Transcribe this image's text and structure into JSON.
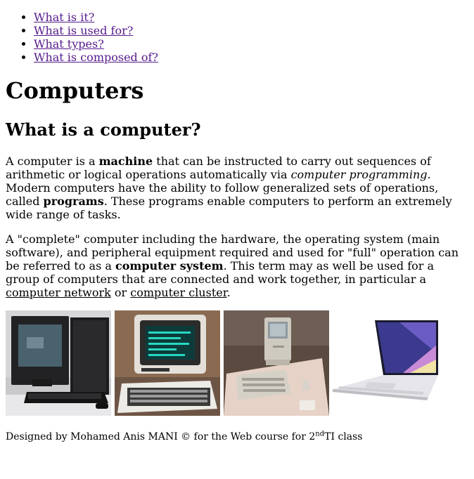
{
  "toc": [
    {
      "label": "What is it?"
    },
    {
      "label": "What is used for?"
    },
    {
      "label": "What types?"
    },
    {
      "label": "What is composed of?"
    }
  ],
  "title": "Computers",
  "section": {
    "heading": "What is a computer?"
  },
  "para1": {
    "t1": "A computer is a ",
    "b1": "machine",
    "t2": " that can be instructed to carry out sequences of arithmetic or logical operations automatically via ",
    "i1": "computer programming",
    "t3": ". Modern computers have the ability to follow generalized sets of operations, called ",
    "b2": "programs",
    "t4": ". These programs enable computers to perform an extremely wide range of tasks."
  },
  "para2": {
    "t1": "A \"complete\" computer including the hardware, the operating system (main software), and peripheral equipment required and used for \"full\" operation can be referred to as a ",
    "b1": "computer system",
    "t2": ". This term may as well be used for a group of computers that are connected and work together, in particular a ",
    "l1": "computer network",
    "t3": " or ",
    "l2": "computer cluster",
    "t4": "."
  },
  "footer": {
    "t1": "Designed by Mohamed Anis MANI © for the Web course for 2",
    "sup": "nd",
    "t2": "TI class"
  },
  "colors": {
    "link_visited": "#551a8b",
    "text": "#000000"
  }
}
